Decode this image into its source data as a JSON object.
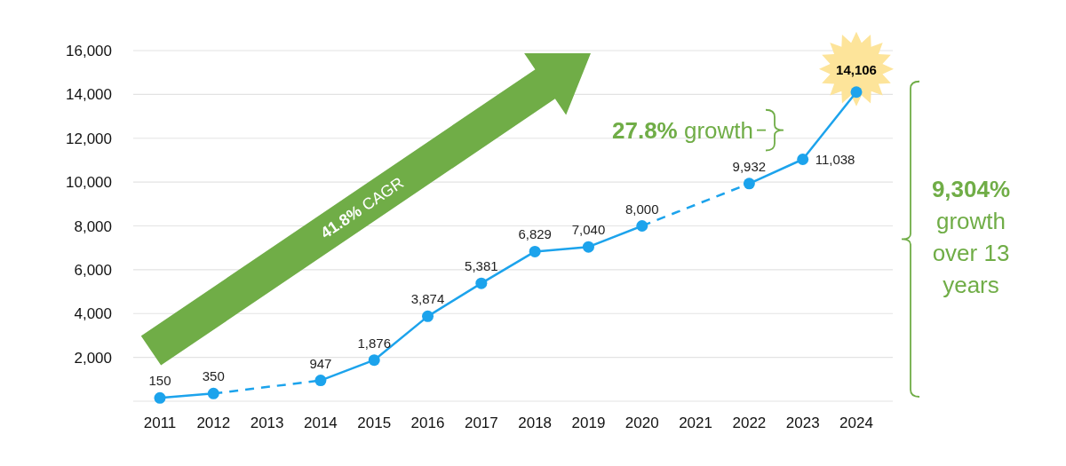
{
  "chart_data": {
    "type": "line",
    "categories": [
      "2011",
      "2012",
      "2013",
      "2014",
      "2015",
      "2016",
      "2017",
      "2018",
      "2019",
      "2020",
      "2021",
      "2022",
      "2023",
      "2024"
    ],
    "series": [
      {
        "color": "#1ca3ec",
        "values": [
          150,
          350,
          null,
          947,
          1876,
          3874,
          5381,
          6829,
          7040,
          8000,
          null,
          9932,
          11038,
          14106
        ],
        "value_labels": [
          "150",
          "350",
          null,
          "947",
          "1,876",
          "3,874",
          "5,381",
          "6,829",
          "7,040",
          "8,000",
          null,
          "9,932",
          "11,038",
          "14,106"
        ]
      }
    ],
    "ylim": [
      0,
      16000
    ],
    "yticks": [
      {
        "value": 0,
        "label": null
      },
      "2,000",
      "4,000",
      "6,000",
      "8,000",
      "10,000",
      "12,000",
      "14,000",
      "16,000"
    ],
    "grid": "y",
    "marker": "circle",
    "line_style": "solid",
    "annotations": [
      "41.8% CAGR",
      "27.8% growth",
      "9,304% growth over 13 years"
    ]
  }
}
